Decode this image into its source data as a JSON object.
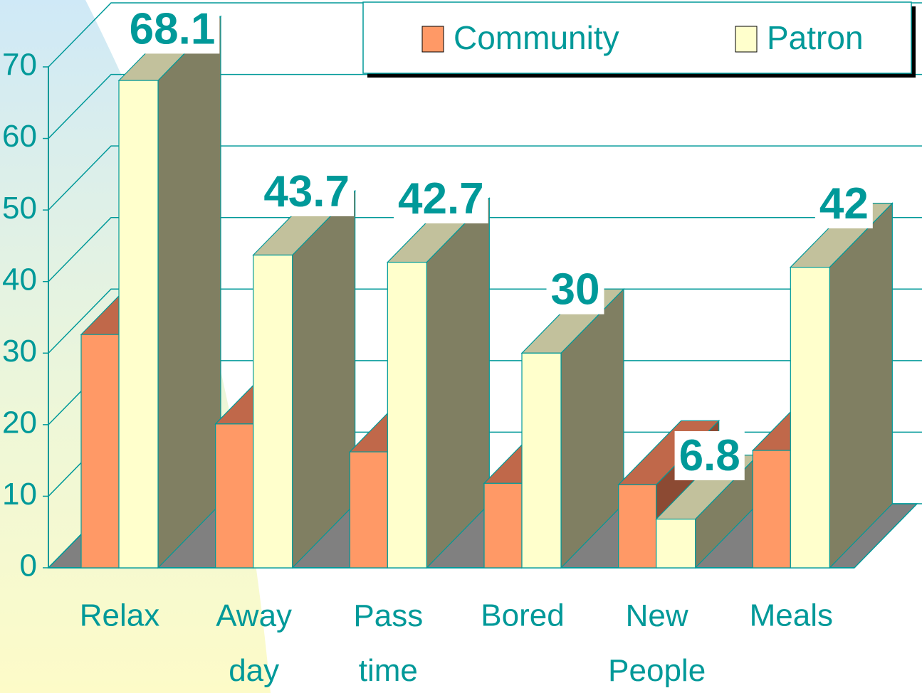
{
  "chart_data": {
    "type": "bar3d",
    "categories": [
      "Relax",
      "Away day",
      "Pass time",
      "Bored",
      "New People",
      "Meals"
    ],
    "series": [
      {
        "name": "Community",
        "color": "#ff9966",
        "values": [
          32.6,
          20.1,
          16.2,
          11.8,
          11.6,
          16.4
        ]
      },
      {
        "name": "Patron",
        "color": "#ffffcc",
        "values": [
          68.1,
          43.7,
          42.7,
          30,
          6.8,
          42
        ]
      }
    ],
    "ylim": [
      0,
      70
    ],
    "yticks": [
      0,
      10,
      20,
      30,
      40,
      50,
      60,
      70
    ],
    "grid": true,
    "legend": "top-right"
  }
}
